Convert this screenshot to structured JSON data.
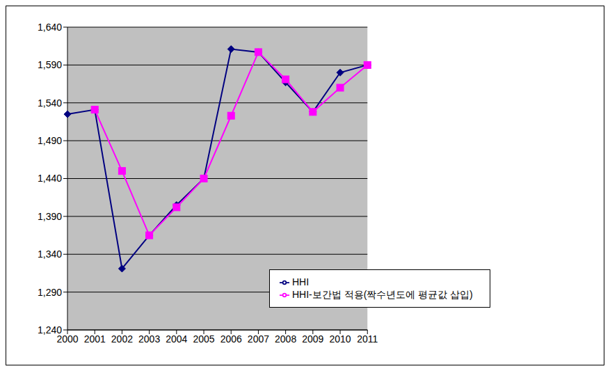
{
  "chart_data": {
    "type": "line",
    "categories": [
      "2000",
      "2001",
      "2002",
      "2003",
      "2004",
      "2005",
      "2006",
      "2007",
      "2008",
      "2009",
      "2010",
      "2011"
    ],
    "series": [
      {
        "name": "HHI",
        "color": "#000080",
        "marker": "diamond",
        "values": [
          1525,
          1531,
          1321,
          1365,
          1405,
          1440,
          1611,
          1607,
          1567,
          1528,
          1580,
          1590
        ]
      },
      {
        "name": "HHI-보간법 적용(짝수년도에 평균값 삽입)",
        "color": "#ff00ff",
        "marker": "square",
        "values": [
          null,
          1531,
          1450,
          1365,
          1402,
          1440,
          1523,
          1607,
          1571,
          1528,
          1560,
          1590
        ]
      }
    ],
    "ylim": [
      1240,
      1640
    ],
    "yticks": [
      {
        "value": 1240,
        "label": "1,240"
      },
      {
        "value": 1290,
        "label": "1,290"
      },
      {
        "value": 1340,
        "label": "1,340"
      },
      {
        "value": 1390,
        "label": "1,390"
      },
      {
        "value": 1440,
        "label": "1,440"
      },
      {
        "value": 1490,
        "label": "1,490"
      },
      {
        "value": 1540,
        "label": "1,540"
      },
      {
        "value": 1590,
        "label": "1,590"
      },
      {
        "value": 1640,
        "label": "1,640"
      }
    ],
    "grid": true,
    "legend": "lower right"
  }
}
